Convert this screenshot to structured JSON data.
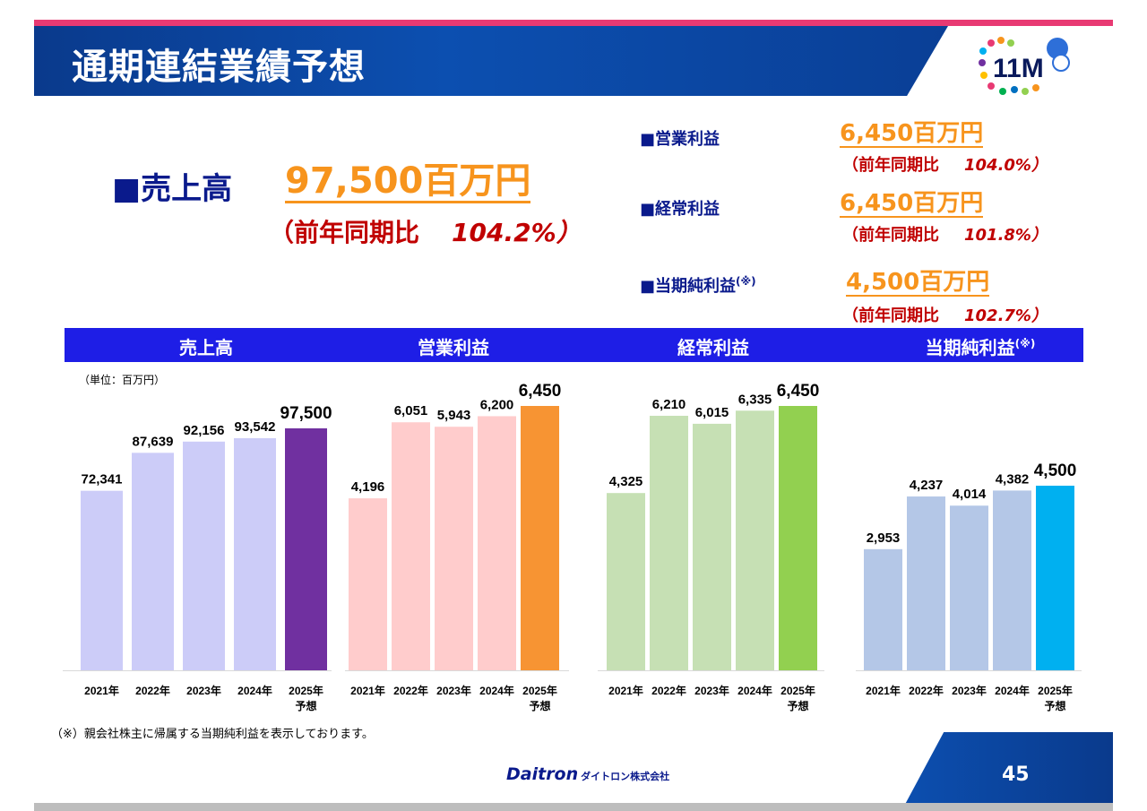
{
  "title": "通期連結業績予想",
  "headline": {
    "bullet": "■売上高",
    "value": "97,500百万円",
    "yoy_label": "（前年同期比",
    "yoy_value": "104.2%）"
  },
  "metrics": [
    {
      "label": "■営業利益",
      "value": "6,450百万円",
      "yoy_label": "（前年同期比",
      "yoy_value": "104.0%）",
      "note": ""
    },
    {
      "label": "■経常利益",
      "value": "6,450百万円",
      "yoy_label": "（前年同期比",
      "yoy_value": "101.8%）",
      "note": ""
    },
    {
      "label": "■当期純利益",
      "value": "4,500百万円",
      "yoy_label": "（前年同期比",
      "yoy_value": "102.7%）",
      "note": "(※)"
    }
  ],
  "chart_headers": [
    "売上高",
    "営業利益",
    "経常利益",
    "当期純利益"
  ],
  "chart_header_note": "(※)",
  "unit_label": "（単位：百万円）",
  "footnote": "（※）親会社株主に帰属する当期純利益を表示しております。",
  "brand": "Daitron",
  "brand_sub": "ダイトロン株式会社",
  "page_number": "45",
  "chart_data": [
    {
      "type": "bar",
      "title": "売上高",
      "categories": [
        "2021年",
        "2022年",
        "2023年",
        "2024年",
        "2025年\n予想"
      ],
      "values": [
        72341,
        87639,
        92156,
        93542,
        97500
      ],
      "labels": [
        "72,341",
        "87,639",
        "92,156",
        "93,542",
        "97,500"
      ],
      "colors": [
        "#ccccf8",
        "#ccccf8",
        "#ccccf8",
        "#ccccf8",
        "#7030a0"
      ]
    },
    {
      "type": "bar",
      "title": "営業利益",
      "categories": [
        "2021年",
        "2022年",
        "2023年",
        "2024年",
        "2025年\n予想"
      ],
      "values": [
        4196,
        6051,
        5943,
        6200,
        6450
      ],
      "labels": [
        "4,196",
        "6,051",
        "5,943",
        "6,200",
        "6,450"
      ],
      "colors": [
        "#ffcccc",
        "#ffcccc",
        "#ffcccc",
        "#ffcccc",
        "#f79433"
      ]
    },
    {
      "type": "bar",
      "title": "経常利益",
      "categories": [
        "2021年",
        "2022年",
        "2023年",
        "2024年",
        "2025年\n予想"
      ],
      "values": [
        4325,
        6210,
        6015,
        6335,
        6450
      ],
      "labels": [
        "4,325",
        "6,210",
        "6,015",
        "6,335",
        "6,450"
      ],
      "colors": [
        "#c6e0b4",
        "#c6e0b4",
        "#c6e0b4",
        "#c6e0b4",
        "#92d050"
      ]
    },
    {
      "type": "bar",
      "title": "当期純利益",
      "categories": [
        "2021年",
        "2022年",
        "2023年",
        "2024年",
        "2025年\n予想"
      ],
      "values": [
        2953,
        4237,
        4014,
        4382,
        4500
      ],
      "labels": [
        "2,953",
        "4,237",
        "4,014",
        "4,382",
        "4,500"
      ],
      "colors": [
        "#b4c7e7",
        "#b4c7e7",
        "#b4c7e7",
        "#b4c7e7",
        "#00b0f0"
      ]
    }
  ]
}
